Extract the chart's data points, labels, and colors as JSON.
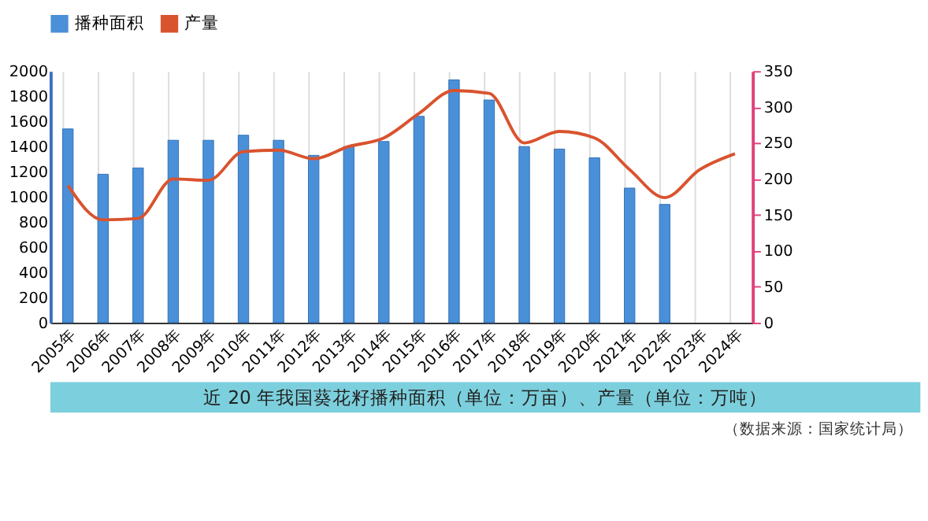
{
  "chart_data": {
    "type": "bar",
    "title": "近 20 年我国葵花籽播种面积（单位：万亩）、产量（单位：万吨）",
    "annotations": [
      "（数据来源：国家统计局）"
    ],
    "categories": [
      "2005年",
      "2006年",
      "2007年",
      "2008年",
      "2009年",
      "2010年",
      "2011年",
      "2012年",
      "2013年",
      "2014年",
      "2015年",
      "2016年",
      "2017年",
      "2018年",
      "2019年",
      "2020年",
      "2021年",
      "2022年",
      "2023年",
      "2024年"
    ],
    "series": [
      {
        "name": "播种面积",
        "color": "#4a90d9",
        "values": [
          1540,
          1180,
          1230,
          1450,
          1450,
          1490,
          1450,
          1330,
          1400,
          1440,
          1640,
          1930,
          1770,
          1400,
          1380,
          1310,
          1070,
          940,
          null,
          null
        ]
      },
      {
        "name": "产量",
        "type": "line",
        "axis": "y2",
        "color": "#d9532e",
        "values": [
          191,
          143,
          145,
          200,
          198,
          238,
          240,
          228,
          245,
          257,
          291,
          323,
          319,
          250,
          266,
          257,
          213,
          174,
          213,
          235
        ]
      }
    ],
    "ylim": [
      0,
      2000
    ],
    "yticks": [
      0,
      200,
      400,
      600,
      800,
      1000,
      1200,
      1400,
      1600,
      1800,
      2000
    ],
    "y2lim": [
      0,
      350
    ],
    "y2ticks": [
      0,
      50,
      100,
      150,
      200,
      250,
      300,
      350
    ],
    "grid": "x",
    "legend": "top"
  }
}
